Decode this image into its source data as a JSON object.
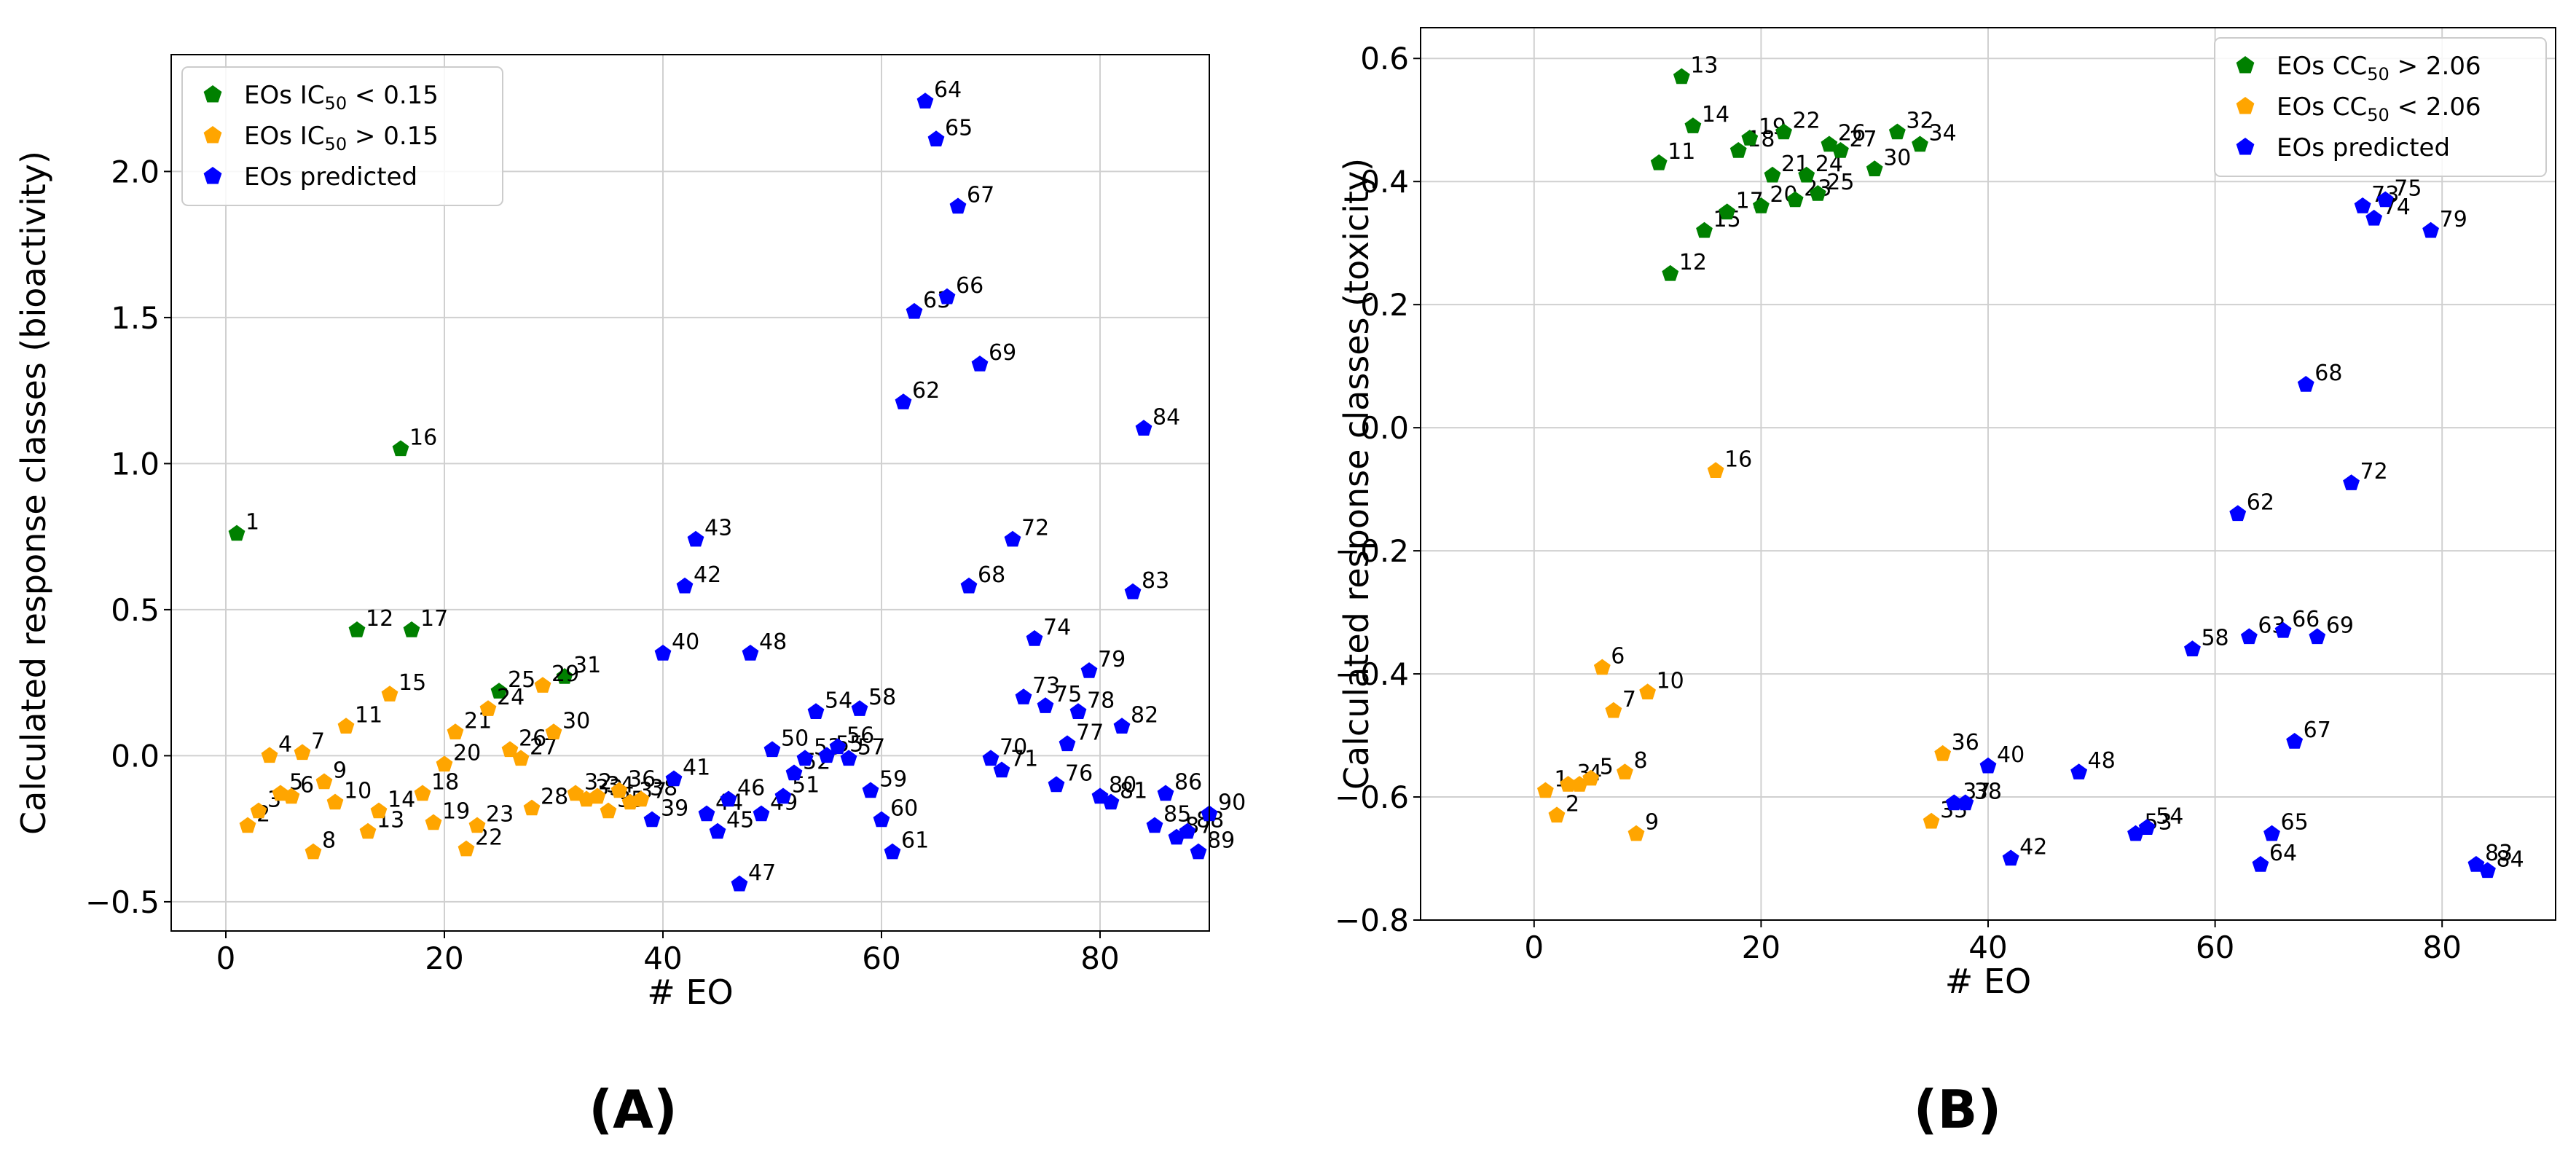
{
  "chart_data": [
    {
      "type": "scatter",
      "xlabel": "# EO",
      "ylabel": "Calculated response classes (bioactivity)",
      "panel_label": "(A)",
      "xlim": [
        -5,
        90
      ],
      "ylim": [
        -0.6,
        2.4
      ],
      "xticks": [
        0,
        20,
        40,
        60,
        80
      ],
      "xtick_labels": [
        "0",
        "20",
        "40",
        "60",
        "80"
      ],
      "yticks": [
        -0.5,
        0.0,
        0.5,
        1.0,
        1.5,
        2.0
      ],
      "ytick_labels": [
        "−0.5",
        "0.0",
        "0.5",
        "1.0",
        "1.5",
        "2.0"
      ],
      "grid": true,
      "legend_position": "top-left",
      "series": [
        {
          "name_parts": [
            "EOs IC",
            "50",
            " < 0.15"
          ],
          "color": "#008000",
          "points": [
            {
              "x": 1,
              "y": 0.76,
              "label": "1"
            },
            {
              "x": 16,
              "y": 1.05,
              "label": "16"
            },
            {
              "x": 12,
              "y": 0.43,
              "label": "12"
            },
            {
              "x": 17,
              "y": 0.43,
              "label": "17"
            },
            {
              "x": 25,
              "y": 0.22,
              "label": "25"
            },
            {
              "x": 31,
              "y": 0.27,
              "label": "31"
            }
          ]
        },
        {
          "name_parts": [
            "EOs IC",
            "50",
            " > 0.15"
          ],
          "color": "#FFA500",
          "points": [
            {
              "x": 2,
              "y": -0.24,
              "label": "2"
            },
            {
              "x": 3,
              "y": -0.19,
              "label": "3"
            },
            {
              "x": 4,
              "y": 0.0,
              "label": "4"
            },
            {
              "x": 5,
              "y": -0.13,
              "label": "5"
            },
            {
              "x": 6,
              "y": -0.14,
              "label": "6"
            },
            {
              "x": 7,
              "y": 0.01,
              "label": "7"
            },
            {
              "x": 8,
              "y": -0.33,
              "label": "8"
            },
            {
              "x": 9,
              "y": -0.09,
              "label": "9"
            },
            {
              "x": 10,
              "y": -0.16,
              "label": "10"
            },
            {
              "x": 11,
              "y": 0.1,
              "label": "11"
            },
            {
              "x": 13,
              "y": -0.26,
              "label": "13"
            },
            {
              "x": 14,
              "y": -0.19,
              "label": "14"
            },
            {
              "x": 15,
              "y": 0.21,
              "label": "15"
            },
            {
              "x": 18,
              "y": -0.13,
              "label": "18"
            },
            {
              "x": 19,
              "y": -0.23,
              "label": "19"
            },
            {
              "x": 20,
              "y": -0.03,
              "label": "20"
            },
            {
              "x": 21,
              "y": 0.08,
              "label": "21"
            },
            {
              "x": 22,
              "y": -0.32,
              "label": "22"
            },
            {
              "x": 23,
              "y": -0.24,
              "label": "23"
            },
            {
              "x": 24,
              "y": 0.16,
              "label": "24"
            },
            {
              "x": 26,
              "y": 0.02,
              "label": "26"
            },
            {
              "x": 27,
              "y": -0.01,
              "label": "27"
            },
            {
              "x": 28,
              "y": -0.18,
              "label": "28"
            },
            {
              "x": 29,
              "y": 0.24,
              "label": "29"
            },
            {
              "x": 30,
              "y": 0.08,
              "label": "30"
            },
            {
              "x": 32,
              "y": -0.13,
              "label": "32"
            },
            {
              "x": 33,
              "y": -0.15,
              "label": "33"
            },
            {
              "x": 34,
              "y": -0.14,
              "label": "34"
            },
            {
              "x": 35,
              "y": -0.19,
              "label": "35"
            },
            {
              "x": 36,
              "y": -0.12,
              "label": "36"
            },
            {
              "x": 37,
              "y": -0.16,
              "label": "37"
            },
            {
              "x": 38,
              "y": -0.15,
              "label": "38"
            }
          ]
        },
        {
          "name_parts": [
            "EOs predicted"
          ],
          "color": "#0000FF",
          "points": [
            {
              "x": 39,
              "y": -0.22,
              "label": "39"
            },
            {
              "x": 40,
              "y": 0.35,
              "label": "40"
            },
            {
              "x": 41,
              "y": -0.08,
              "label": "41"
            },
            {
              "x": 42,
              "y": 0.58,
              "label": "42"
            },
            {
              "x": 43,
              "y": 0.74,
              "label": "43"
            },
            {
              "x": 44,
              "y": -0.2,
              "label": "44"
            },
            {
              "x": 45,
              "y": -0.26,
              "label": "45"
            },
            {
              "x": 46,
              "y": -0.15,
              "label": "46"
            },
            {
              "x": 47,
              "y": -0.44,
              "label": "47"
            },
            {
              "x": 48,
              "y": 0.35,
              "label": "48"
            },
            {
              "x": 49,
              "y": -0.2,
              "label": "49"
            },
            {
              "x": 50,
              "y": 0.02,
              "label": "50"
            },
            {
              "x": 51,
              "y": -0.14,
              "label": "51"
            },
            {
              "x": 52,
              "y": -0.06,
              "label": "52"
            },
            {
              "x": 53,
              "y": -0.01,
              "label": "53"
            },
            {
              "x": 54,
              "y": 0.15,
              "label": "54"
            },
            {
              "x": 55,
              "y": 0.0,
              "label": "55"
            },
            {
              "x": 56,
              "y": 0.03,
              "label": "56"
            },
            {
              "x": 57,
              "y": -0.01,
              "label": "57"
            },
            {
              "x": 58,
              "y": 0.16,
              "label": "58"
            },
            {
              "x": 59,
              "y": -0.12,
              "label": "59"
            },
            {
              "x": 60,
              "y": -0.22,
              "label": "60"
            },
            {
              "x": 61,
              "y": -0.33,
              "label": "61"
            },
            {
              "x": 62,
              "y": 1.21,
              "label": "62"
            },
            {
              "x": 63,
              "y": 1.52,
              "label": "63"
            },
            {
              "x": 64,
              "y": 2.24,
              "label": "64"
            },
            {
              "x": 65,
              "y": 2.11,
              "label": "65"
            },
            {
              "x": 66,
              "y": 1.57,
              "label": "66"
            },
            {
              "x": 67,
              "y": 1.88,
              "label": "67"
            },
            {
              "x": 68,
              "y": 0.58,
              "label": "68"
            },
            {
              "x": 69,
              "y": 1.34,
              "label": "69"
            },
            {
              "x": 70,
              "y": -0.01,
              "label": "70"
            },
            {
              "x": 71,
              "y": -0.05,
              "label": "71"
            },
            {
              "x": 72,
              "y": 0.74,
              "label": "72"
            },
            {
              "x": 73,
              "y": 0.2,
              "label": "73"
            },
            {
              "x": 74,
              "y": 0.4,
              "label": "74"
            },
            {
              "x": 75,
              "y": 0.17,
              "label": "75"
            },
            {
              "x": 76,
              "y": -0.1,
              "label": "76"
            },
            {
              "x": 77,
              "y": 0.04,
              "label": "77"
            },
            {
              "x": 78,
              "y": 0.15,
              "label": "78"
            },
            {
              "x": 79,
              "y": 0.29,
              "label": "79"
            },
            {
              "x": 80,
              "y": -0.14,
              "label": "80"
            },
            {
              "x": 81,
              "y": -0.16,
              "label": "81"
            },
            {
              "x": 82,
              "y": 0.1,
              "label": "82"
            },
            {
              "x": 83,
              "y": 0.56,
              "label": "83"
            },
            {
              "x": 84,
              "y": 1.12,
              "label": "84"
            },
            {
              "x": 85,
              "y": -0.24,
              "label": "85"
            },
            {
              "x": 86,
              "y": -0.13,
              "label": "86"
            },
            {
              "x": 87,
              "y": -0.28,
              "label": "87"
            },
            {
              "x": 88,
              "y": -0.26,
              "label": "88"
            },
            {
              "x": 89,
              "y": -0.33,
              "label": "89"
            },
            {
              "x": 90,
              "y": -0.2,
              "label": "90"
            }
          ]
        }
      ]
    },
    {
      "type": "scatter",
      "xlabel": "# EO",
      "ylabel": "Calculated response classes (toxicity)",
      "panel_label": "(B)",
      "xlim": [
        -10,
        90
      ],
      "ylim": [
        -0.8,
        0.65
      ],
      "xticks": [
        0,
        20,
        40,
        60,
        80
      ],
      "xtick_labels": [
        "0",
        "20",
        "40",
        "60",
        "80"
      ],
      "yticks": [
        -0.8,
        -0.6,
        -0.4,
        -0.2,
        0.0,
        0.2,
        0.4,
        0.6
      ],
      "ytick_labels": [
        "−0.8",
        "−0.6",
        "−0.4",
        "−0.2",
        "0.0",
        "0.2",
        "0.4",
        "0.6"
      ],
      "grid": true,
      "legend_position": "top-right",
      "series": [
        {
          "name_parts": [
            "EOs CC",
            "50",
            " > 2.06"
          ],
          "color": "#008000",
          "points": [
            {
              "x": 11,
              "y": 0.43,
              "label": "11"
            },
            {
              "x": 12,
              "y": 0.25,
              "label": "12"
            },
            {
              "x": 13,
              "y": 0.57,
              "label": "13"
            },
            {
              "x": 14,
              "y": 0.49,
              "label": "14"
            },
            {
              "x": 15,
              "y": 0.32,
              "label": "15"
            },
            {
              "x": 17,
              "y": 0.35,
              "label": "17"
            },
            {
              "x": 18,
              "y": 0.45,
              "label": "18"
            },
            {
              "x": 19,
              "y": 0.47,
              "label": "19"
            },
            {
              "x": 20,
              "y": 0.36,
              "label": "20"
            },
            {
              "x": 21,
              "y": 0.41,
              "label": "21"
            },
            {
              "x": 22,
              "y": 0.48,
              "label": "22"
            },
            {
              "x": 23,
              "y": 0.37,
              "label": "23"
            },
            {
              "x": 24,
              "y": 0.41,
              "label": "24"
            },
            {
              "x": 25,
              "y": 0.38,
              "label": "25"
            },
            {
              "x": 26,
              "y": 0.46,
              "label": "26"
            },
            {
              "x": 27,
              "y": 0.45,
              "label": "27"
            },
            {
              "x": 30,
              "y": 0.42,
              "label": "30"
            },
            {
              "x": 32,
              "y": 0.48,
              "label": "32"
            },
            {
              "x": 34,
              "y": 0.46,
              "label": "34"
            }
          ]
        },
        {
          "name_parts": [
            "EOs CC",
            "50",
            " < 2.06"
          ],
          "color": "#FFA500",
          "points": [
            {
              "x": 1,
              "y": -0.59,
              "label": "1"
            },
            {
              "x": 2,
              "y": -0.63,
              "label": "2"
            },
            {
              "x": 3,
              "y": -0.58,
              "label": "3"
            },
            {
              "x": 4,
              "y": -0.58,
              "label": "4"
            },
            {
              "x": 5,
              "y": -0.57,
              "label": "5"
            },
            {
              "x": 6,
              "y": -0.39,
              "label": "6"
            },
            {
              "x": 7,
              "y": -0.46,
              "label": "7"
            },
            {
              "x": 8,
              "y": -0.56,
              "label": "8"
            },
            {
              "x": 9,
              "y": -0.66,
              "label": "9"
            },
            {
              "x": 10,
              "y": -0.43,
              "label": "10"
            },
            {
              "x": 16,
              "y": -0.07,
              "label": "16"
            },
            {
              "x": 35,
              "y": -0.64,
              "label": "35"
            },
            {
              "x": 36,
              "y": -0.53,
              "label": "36"
            }
          ]
        },
        {
          "name_parts": [
            "EOs predicted"
          ],
          "color": "#0000FF",
          "points": [
            {
              "x": 37,
              "y": -0.61,
              "label": "37"
            },
            {
              "x": 38,
              "y": -0.61,
              "label": "38"
            },
            {
              "x": 40,
              "y": -0.55,
              "label": "40"
            },
            {
              "x": 42,
              "y": -0.7,
              "label": "42"
            },
            {
              "x": 48,
              "y": -0.56,
              "label": "48"
            },
            {
              "x": 53,
              "y": -0.66,
              "label": "53"
            },
            {
              "x": 54,
              "y": -0.65,
              "label": "54"
            },
            {
              "x": 58,
              "y": -0.36,
              "label": "58"
            },
            {
              "x": 62,
              "y": -0.14,
              "label": "62"
            },
            {
              "x": 63,
              "y": -0.34,
              "label": "63"
            },
            {
              "x": 64,
              "y": -0.71,
              "label": "64"
            },
            {
              "x": 65,
              "y": -0.66,
              "label": "65"
            },
            {
              "x": 66,
              "y": -0.33,
              "label": "66"
            },
            {
              "x": 67,
              "y": -0.51,
              "label": "67"
            },
            {
              "x": 68,
              "y": 0.07,
              "label": "68"
            },
            {
              "x": 69,
              "y": -0.34,
              "label": "69"
            },
            {
              "x": 72,
              "y": -0.09,
              "label": "72"
            },
            {
              "x": 73,
              "y": 0.36,
              "label": "73"
            },
            {
              "x": 74,
              "y": 0.34,
              "label": "74"
            },
            {
              "x": 75,
              "y": 0.37,
              "label": "75"
            },
            {
              "x": 79,
              "y": 0.32,
              "label": "79"
            },
            {
              "x": 83,
              "y": -0.71,
              "label": "83"
            },
            {
              "x": 84,
              "y": -0.72,
              "label": "84"
            }
          ]
        }
      ]
    }
  ]
}
